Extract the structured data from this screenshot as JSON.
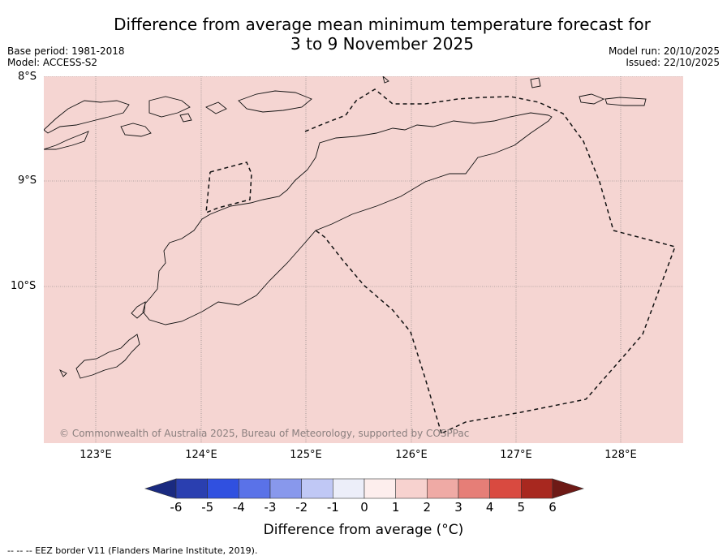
{
  "title": {
    "line1": "Difference from average mean minimum temperature forecast for",
    "line2": "3 to 9 November 2025"
  },
  "meta": {
    "base_period": "Base period: 1981-2018",
    "model": "Model: ACCESS-S2",
    "model_run": "Model run: 20/10/2025",
    "issued": "Issued: 22/10/2025"
  },
  "map": {
    "fill_color": "#f5d5d2",
    "lat_labels": [
      "8°S",
      "9°S",
      "10°S"
    ],
    "lon_labels": [
      "123°E",
      "124°E",
      "125°E",
      "126°E",
      "127°E",
      "128°E"
    ],
    "copyright": "© Commonwealth of Australia 2025, Bureau of Meteorology, supported by COSPPac"
  },
  "colorbar": {
    "ticks": [
      "-6",
      "-5",
      "-4",
      "-3",
      "-2",
      "-1",
      "0",
      "1",
      "2",
      "3",
      "4",
      "5",
      "6"
    ],
    "colors": [
      "#1a2a80",
      "#2a3fb0",
      "#3050e0",
      "#5a72e8",
      "#8898ec",
      "#c0c8f5",
      "#eceef9",
      "#fdeeed",
      "#f7d2cf",
      "#efaaa5",
      "#e67e77",
      "#d94a40",
      "#a8281f",
      "#6e1a16"
    ],
    "label": "Difference from average (°C)"
  },
  "footer": "--  --  -- EEZ border V11 (Flanders Marine Institute, 2019)."
}
